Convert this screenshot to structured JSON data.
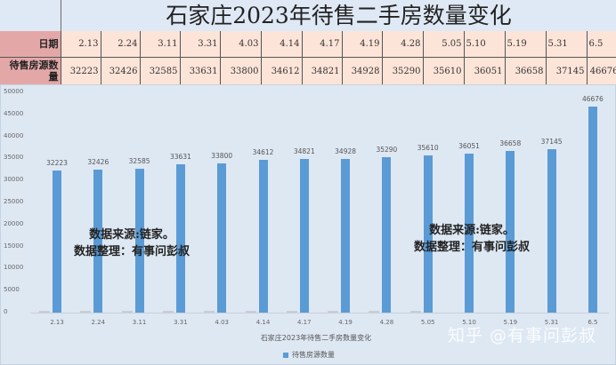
{
  "header": {
    "title": "石家庄2023年待售二手房数量变化"
  },
  "table": {
    "row_headers": [
      "日期",
      "待售房源数量"
    ],
    "dates": [
      "2.13",
      "2.24",
      "3.11",
      "3.31",
      "4.03",
      "4.14",
      "4.17",
      "4.19",
      "4.28",
      "5.05",
      "5.10",
      "5.19",
      "5.31",
      "6.5"
    ],
    "counts": [
      "32223",
      "32426",
      "32585",
      "33631",
      "33800",
      "34612",
      "34821",
      "34928",
      "35290",
      "35610",
      "36051",
      "36658",
      "37145",
      "46676"
    ]
  },
  "notes": {
    "left_line1": "数据来源:链家。",
    "left_line2": "数据整理：有事问彭叔",
    "right_line1": "数据来源:链家。",
    "right_line2": "数据整理：有事问彭叔"
  },
  "watermark": "知乎 @有事问彭叔",
  "colors": {
    "bar": "#5b9bd5",
    "header_cell": "#e4a7a8",
    "data_cell": "#fde4d8",
    "background": "#dee8f3"
  },
  "chart_data": {
    "type": "bar",
    "title": "石家庄2023年待售二手房数量变化",
    "xlabel": "石家庄2023年待售二手房数量变化",
    "ylabel": "",
    "categories": [
      "2.13",
      "2.24",
      "3.11",
      "3.31",
      "4.03",
      "4.14",
      "4.17",
      "4.19",
      "4.28",
      "5.05",
      "5.10",
      "5.19",
      "5.31",
      "6.5"
    ],
    "series": [
      {
        "name": "日期",
        "values": [
          2.13,
          2.24,
          3.11,
          3.31,
          4.03,
          4.14,
          4.17,
          4.19,
          4.28,
          5.05,
          null,
          null,
          null,
          null
        ]
      },
      {
        "name": "待售房源数量",
        "values": [
          32223,
          32426,
          32585,
          33631,
          33800,
          34612,
          34821,
          34928,
          35290,
          35610,
          36051,
          36658,
          37145,
          46676
        ]
      }
    ],
    "yticks": [
      "0",
      "5000",
      "10000",
      "15000",
      "20000",
      "25000",
      "30000",
      "35000",
      "40000",
      "45000",
      "50000"
    ],
    "ylim": [
      0,
      50000
    ],
    "grid": false,
    "legend": {
      "position": "bottom",
      "entries": [
        "待售房源数量"
      ]
    },
    "data_labels": true
  }
}
